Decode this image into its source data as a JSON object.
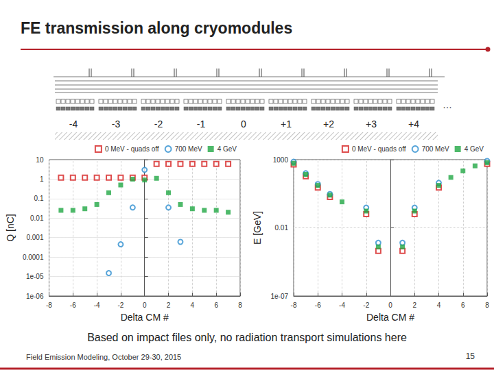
{
  "title": "FE transmission along cryomodules",
  "diagram": {
    "labels": [
      "-4",
      "-3",
      "-2",
      "-1",
      "0",
      "+1",
      "+2",
      "+3",
      "+4"
    ],
    "more": "…"
  },
  "note": "Based on impact files only, no radiation transport simulations here",
  "footer": "Field Emission Modeling, October 29-30, 2015",
  "page": "15",
  "chart_data": [
    {
      "type": "scatter",
      "x_label": "Delta CM #",
      "y_label": "Q [nC]",
      "log": "y",
      "grid": true,
      "legend": "upper right",
      "xlim": [
        -8,
        8
      ],
      "xticks": [
        -8,
        -6,
        -4,
        -2,
        0,
        2,
        4,
        6,
        8
      ],
      "ylim": [
        1e-06,
        10
      ],
      "yticks": [
        {
          "value": 1e-06,
          "label": "1e-06"
        },
        {
          "value": 1e-05,
          "label": "1e-05"
        },
        0.0001,
        0.001,
        0.01,
        0.1,
        1,
        10
      ],
      "x": [
        -7,
        -6,
        -5,
        -4,
        -3,
        -2,
        -1,
        0,
        1,
        2,
        3,
        4,
        5,
        6,
        7
      ],
      "series": [
        {
          "name": "0 MeV - quads off",
          "color": "#d62020",
          "marker": "square_open",
          "values": [
            1.2,
            1.2,
            1.2,
            1.2,
            1.2,
            1.2,
            1.2,
            1.2,
            6,
            6,
            6,
            6,
            6,
            6,
            6
          ]
        },
        {
          "name": "700 MeV",
          "color": "#2e8fd0",
          "marker": "circle_open",
          "values": [
            null,
            null,
            null,
            null,
            1.5e-05,
            0.00045,
            0.035,
            3,
            null,
            0.035,
            0.0006,
            null,
            null,
            null,
            null
          ]
        },
        {
          "name": "4 GeV",
          "color": "#22a845",
          "marker": "square",
          "values": [
            0.025,
            0.025,
            0.03,
            0.05,
            0.2,
            0.5,
            1,
            0.9,
            1.1,
            0.2,
            0.05,
            0.03,
            0.025,
            0.025,
            0.02
          ]
        }
      ]
    },
    {
      "type": "scatter",
      "x_label": "Delta CM #",
      "y_label": "E [GeV]",
      "log": "y",
      "grid": true,
      "legend": "upper right",
      "xlim": [
        -8,
        8
      ],
      "xticks": [
        -8,
        -6,
        -4,
        -2,
        0,
        2,
        4,
        6,
        8
      ],
      "ylim": [
        1e-07,
        1000
      ],
      "yticks": [
        {
          "value": 1e-07,
          "label": "1e-07"
        },
        0.01,
        1000
      ],
      "x": [
        -8,
        -7,
        -6,
        -5,
        -4,
        -3,
        -2,
        -1,
        0,
        1,
        2,
        3,
        4,
        5,
        6,
        7,
        8
      ],
      "series": [
        {
          "name": "0 MeV - quads off",
          "color": "#d62020",
          "marker": "square_open",
          "values": [
            450,
            60,
            9,
            1.8,
            null,
            null,
            0.1,
            0.0002,
            null,
            0.0002,
            0.1,
            null,
            9,
            null,
            null,
            null,
            480
          ]
        },
        {
          "name": "700 MeV",
          "color": "#2e8fd0",
          "marker": "circle_open",
          "values": [
            700,
            100,
            16,
            3,
            null,
            null,
            0.3,
            0.0008,
            null,
            0.0008,
            0.3,
            null,
            20,
            null,
            null,
            null,
            800
          ]
        },
        {
          "name": "4 GeV",
          "color": "#22a845",
          "marker": "square",
          "values": [
            540,
            83,
            13,
            2.5,
            0.8,
            null,
            0.17,
            0.0004,
            null,
            0.0004,
            0.17,
            null,
            13,
            50,
            150,
            350,
            600
          ]
        }
      ]
    }
  ]
}
